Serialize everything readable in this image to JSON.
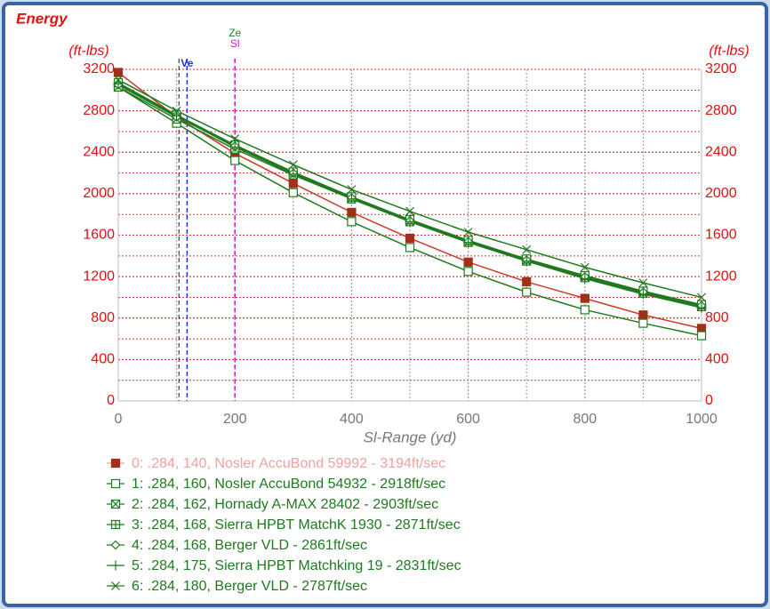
{
  "chart_data": {
    "type": "line",
    "title": "Energy",
    "y_unit_left": "(ft-lbs)",
    "y_unit_right": "(ft-lbs)",
    "x_label": "Sl-Range (yd)",
    "x": [
      0,
      100,
      200,
      300,
      400,
      500,
      600,
      700,
      800,
      900,
      1000
    ],
    "xlim": [
      0,
      1000
    ],
    "xticks": [
      0,
      200,
      400,
      600,
      800,
      1000
    ],
    "ylim": [
      0,
      3200
    ],
    "yticks": [
      0,
      400,
      800,
      1200,
      1600,
      2000,
      2400,
      2800,
      3200
    ],
    "x_grid_step": 100,
    "y_grid_step": 200,
    "grid": true,
    "markers": [
      {
        "x": 104,
        "color": "#222222"
      },
      {
        "label": "Ve",
        "x": 118,
        "color": "#2233dd"
      },
      {
        "label": "Ze",
        "x": 200,
        "color": "#228833"
      },
      {
        "label": "Sl",
        "x": 200,
        "color": "#cc22cc"
      }
    ],
    "series": [
      {
        "name": "0: .284, 140, Nosler AccuBond 59992 - 3194ft/sec",
        "color": "#cc3a2a",
        "legend_color": "#f2a0a0",
        "marker": "square-filled",
        "values": [
          3170,
          2740,
          2390,
          2100,
          1820,
          1570,
          1340,
          1150,
          990,
          830,
          700
        ]
      },
      {
        "name": "1: .284, 160, Nosler AccuBond 54932 - 2918ft/sec",
        "color": "#1f7a1f",
        "marker": "square",
        "values": [
          3030,
          2680,
          2320,
          2010,
          1730,
          1480,
          1250,
          1050,
          880,
          750,
          630
        ]
      },
      {
        "name": "2: .284, 162, Hornady A-MAX 28402 - 2903ft/sec",
        "color": "#1f7a1f",
        "marker": "square-x",
        "values": [
          3030,
          2720,
          2430,
          2180,
          1950,
          1730,
          1530,
          1350,
          1190,
          1040,
          910
        ]
      },
      {
        "name": "3: .284, 168, Sierra HPBT MatchK 1930 - 2871ft/sec",
        "color": "#1f7a1f",
        "marker": "square-plus",
        "values": [
          3070,
          2760,
          2470,
          2210,
          1970,
          1750,
          1550,
          1370,
          1210,
          1060,
          930
        ]
      },
      {
        "name": "4: .284, 168, Berger VLD - 2861ft/sec",
        "color": "#1f7a1f",
        "marker": "diamond",
        "values": [
          3050,
          2740,
          2460,
          2200,
          1960,
          1740,
          1540,
          1360,
          1200,
          1050,
          920
        ]
      },
      {
        "name": "5: .284, 175, Sierra HPBT Matchking 19 - 2831ft/sec",
        "color": "#1f7a1f",
        "marker": "plus",
        "values": [
          3060,
          2750,
          2450,
          2190,
          1950,
          1730,
          1530,
          1350,
          1180,
          1030,
          900
        ]
      },
      {
        "name": "6: .284, 180, Berger VLD - 2787ft/sec",
        "color": "#1f7a1f",
        "marker": "x",
        "values": [
          3100,
          2800,
          2530,
          2280,
          2040,
          1830,
          1630,
          1460,
          1290,
          1140,
          1000
        ]
      }
    ]
  }
}
